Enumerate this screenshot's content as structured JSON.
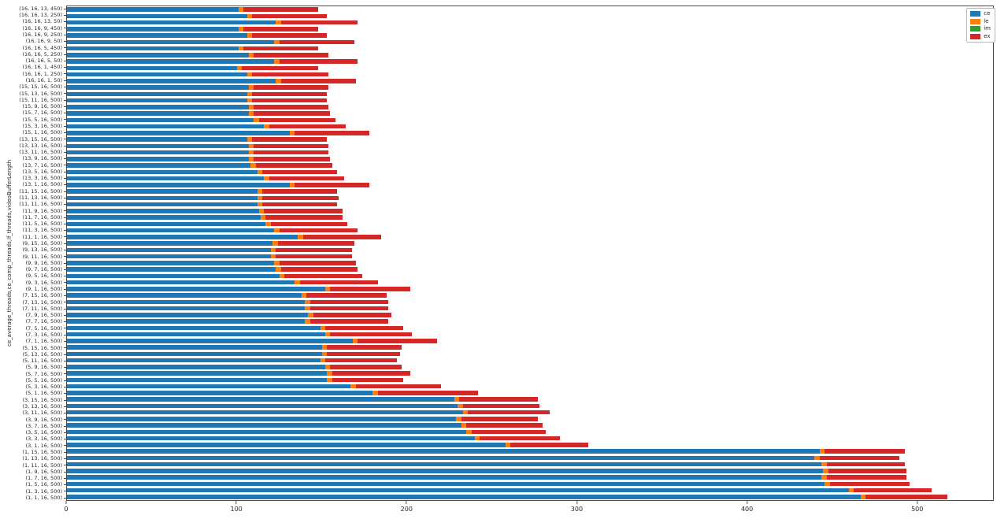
{
  "figure": {
    "background": "#ffffff",
    "text_color": "#262626",
    "axis_color": "#4a4a4a"
  },
  "chart_data": {
    "type": "bar",
    "orientation": "horizontal",
    "stacked": true,
    "title": "",
    "xlabel": "",
    "ylabel": "ce_average_threads,ce_comp_threads,lf_threads,videoBufferLength",
    "xlim": [
      0,
      545
    ],
    "xticks": [
      0,
      100,
      200,
      300,
      400,
      500
    ],
    "grid": false,
    "legend_position": "upper right",
    "categories": [
      "(16, 16, 13, 450)",
      "(16, 16, 13, 250)",
      "(16, 16, 13, 50)",
      "(16, 16, 9, 450)",
      "(16, 16, 9, 250)",
      "(16, 16, 9, 50)",
      "(16, 16, 5, 450)",
      "(16, 16, 5, 250)",
      "(16, 16, 5, 50)",
      "(16, 16, 1, 450)",
      "(16, 16, 1, 250)",
      "(16, 16, 1, 50)",
      "(15, 15, 16, 500)",
      "(15, 13, 16, 500)",
      "(15, 11, 16, 500)",
      "(15, 9, 16, 500)",
      "(15, 7, 16, 500)",
      "(15, 5, 16, 500)",
      "(15, 3, 16, 500)",
      "(15, 1, 16, 500)",
      "(13, 15, 16, 500)",
      "(13, 13, 16, 500)",
      "(13, 11, 16, 500)",
      "(13, 9, 16, 500)",
      "(13, 7, 16, 500)",
      "(13, 5, 16, 500)",
      "(13, 3, 16, 500)",
      "(13, 1, 16, 500)",
      "(11, 15, 16, 500)",
      "(11, 13, 16, 500)",
      "(11, 11, 16, 500)",
      "(11, 9, 16, 500)",
      "(11, 7, 16, 500)",
      "(11, 5, 16, 500)",
      "(11, 3, 16, 500)",
      "(11, 1, 16, 500)",
      "(9, 15, 16, 500)",
      "(9, 13, 16, 500)",
      "(9, 11, 16, 500)",
      "(9, 9, 16, 500)",
      "(9, 7, 16, 500)",
      "(9, 5, 16, 500)",
      "(9, 3, 16, 500)",
      "(9, 1, 16, 500)",
      "(7, 15, 16, 500)",
      "(7, 13, 16, 500)",
      "(7, 11, 16, 500)",
      "(7, 9, 16, 500)",
      "(7, 7, 16, 500)",
      "(7, 5, 16, 500)",
      "(7, 3, 16, 500)",
      "(7, 1, 16, 500)",
      "(5, 15, 16, 500)",
      "(5, 13, 16, 500)",
      "(5, 11, 16, 500)",
      "(5, 9, 16, 500)",
      "(5, 7, 16, 500)",
      "(5, 5, 16, 500)",
      "(5, 3, 16, 500)",
      "(5, 1, 16, 500)",
      "(3, 15, 16, 500)",
      "(3, 13, 16, 500)",
      "(3, 11, 16, 500)",
      "(3, 9, 16, 500)",
      "(3, 7, 16, 500)",
      "(3, 5, 16, 500)",
      "(3, 3, 16, 500)",
      "(3, 1, 16, 500)",
      "(1, 15, 16, 500)",
      "(1, 13, 16, 500)",
      "(1, 11, 16, 500)",
      "(1, 9, 16, 500)",
      "(1, 7, 16, 500)",
      "(1, 5, 16, 500)",
      "(1, 3, 16, 500)",
      "(1, 1, 16, 500)"
    ],
    "series": [
      {
        "name": "ce",
        "color": "#1f77b4",
        "values": [
          101,
          106,
          123,
          101,
          106,
          122,
          101,
          107,
          122,
          100,
          106,
          123,
          107,
          106,
          106,
          107,
          107,
          110,
          116,
          131,
          106,
          107,
          107,
          107,
          108,
          112,
          116,
          131,
          112,
          112,
          112,
          113,
          114,
          117,
          122,
          136,
          121,
          120,
          120,
          122,
          123,
          125,
          134,
          152,
          138,
          140,
          140,
          142,
          140,
          149,
          152,
          168,
          150,
          150,
          149,
          152,
          153,
          153,
          167,
          180,
          228,
          230,
          233,
          229,
          232,
          235,
          240,
          258,
          443,
          440,
          444,
          445,
          444,
          446,
          460,
          467
        ]
      },
      {
        "name": "le",
        "color": "#ff7f0e",
        "values": [
          3,
          3,
          3,
          3,
          3,
          3,
          3,
          3,
          3,
          3,
          3,
          3,
          3,
          3,
          3,
          3,
          3,
          3,
          3,
          3,
          3,
          3,
          3,
          3,
          3,
          3,
          3,
          3,
          3,
          3,
          3,
          3,
          3,
          3,
          3,
          3,
          3,
          3,
          3,
          3,
          3,
          3,
          3,
          3,
          3,
          3,
          3,
          3,
          3,
          3,
          3,
          3,
          3,
          3,
          3,
          3,
          3,
          3,
          3,
          3,
          3,
          3,
          3,
          3,
          3,
          3,
          3,
          3,
          3,
          3,
          3,
          3,
          3,
          3,
          3,
          3
        ]
      },
      {
        "name": "im",
        "color": "#2ca02c",
        "values": [
          0,
          0,
          0,
          0,
          0,
          0,
          0,
          0,
          0,
          0,
          0,
          0,
          0,
          0,
          0,
          0,
          0,
          0,
          0,
          0,
          0,
          0,
          0,
          0,
          0,
          0,
          0,
          0,
          0,
          0,
          0,
          0,
          0,
          0,
          0,
          0,
          0,
          0,
          0,
          0,
          0,
          0,
          0,
          0,
          0,
          0,
          0,
          0,
          0,
          0,
          0,
          0,
          0,
          0,
          0,
          0,
          0,
          0,
          0,
          0,
          0,
          0,
          0,
          0,
          0,
          0,
          0,
          0,
          0,
          0,
          0,
          0,
          0,
          0,
          0,
          0
        ]
      },
      {
        "name": "ex",
        "color": "#d62728",
        "values": [
          44,
          44,
          45,
          44,
          44,
          44,
          44,
          44,
          46,
          45,
          45,
          44,
          44,
          44,
          44,
          44,
          45,
          45,
          45,
          44,
          44,
          44,
          44,
          45,
          45,
          44,
          44,
          44,
          44,
          45,
          44,
          46,
          45,
          45,
          46,
          46,
          45,
          45,
          45,
          45,
          45,
          46,
          46,
          47,
          47,
          46,
          46,
          46,
          46,
          46,
          48,
          47,
          44,
          43,
          42,
          42,
          46,
          42,
          50,
          59,
          46,
          45,
          48,
          45,
          45,
          44,
          47,
          46,
          47,
          47,
          46,
          46,
          47,
          47,
          46,
          48
        ]
      }
    ]
  }
}
